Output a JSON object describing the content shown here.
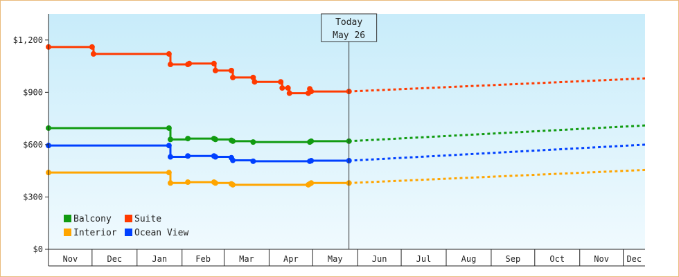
{
  "chart_data": {
    "type": "line",
    "title": "",
    "xlabel": "",
    "ylabel": "",
    "ylim": [
      0,
      1350
    ],
    "y_ticks": [
      {
        "value": 0,
        "label": "$0"
      },
      {
        "value": 300,
        "label": "$300"
      },
      {
        "value": 600,
        "label": "$600"
      },
      {
        "value": 900,
        "label": "$900"
      },
      {
        "value": 1200,
        "label": "$1,200"
      }
    ],
    "x_axis": {
      "start": "2023-11-01",
      "end": "2024-12-16",
      "months": [
        {
          "label": "Nov",
          "start": "2023-11-01"
        },
        {
          "label": "Dec",
          "start": "2023-12-01"
        },
        {
          "label": "Jan",
          "start": "2024-01-01"
        },
        {
          "label": "Feb",
          "start": "2024-02-01"
        },
        {
          "label": "Mar",
          "start": "2024-03-01"
        },
        {
          "label": "Apr",
          "start": "2024-04-01"
        },
        {
          "label": "May",
          "start": "2024-05-01"
        },
        {
          "label": "Jun",
          "start": "2024-06-01"
        },
        {
          "label": "Jul",
          "start": "2024-07-01"
        },
        {
          "label": "Aug",
          "start": "2024-08-01"
        },
        {
          "label": "Sep",
          "start": "2024-09-01"
        },
        {
          "label": "Oct",
          "start": "2024-10-01"
        },
        {
          "label": "Nov",
          "start": "2024-11-01"
        },
        {
          "label": "Dec",
          "start": "2024-12-01"
        }
      ]
    },
    "today": {
      "date": "2024-05-26",
      "line1": "Today",
      "line2": "May 26"
    },
    "grid": false,
    "legend": {
      "placement": "bottom-left",
      "columns": 2
    },
    "series": [
      {
        "name": "Suite",
        "color": "#ff3a00",
        "points": [
          {
            "date": "2023-11-01",
            "value": 1160
          },
          {
            "date": "2023-12-01",
            "value": 1160
          },
          {
            "date": "2023-12-02",
            "value": 1120
          },
          {
            "date": "2024-01-23",
            "value": 1120
          },
          {
            "date": "2024-01-24",
            "value": 1060
          },
          {
            "date": "2024-02-05",
            "value": 1060
          },
          {
            "date": "2024-02-06",
            "value": 1065
          },
          {
            "date": "2024-02-23",
            "value": 1065
          },
          {
            "date": "2024-02-24",
            "value": 1025
          },
          {
            "date": "2024-03-06",
            "value": 1025
          },
          {
            "date": "2024-03-07",
            "value": 985
          },
          {
            "date": "2024-03-21",
            "value": 985
          },
          {
            "date": "2024-03-22",
            "value": 960
          },
          {
            "date": "2024-04-09",
            "value": 960
          },
          {
            "date": "2024-04-10",
            "value": 925
          },
          {
            "date": "2024-04-14",
            "value": 925
          },
          {
            "date": "2024-04-15",
            "value": 895
          },
          {
            "date": "2024-04-28",
            "value": 895
          },
          {
            "date": "2024-04-29",
            "value": 920
          },
          {
            "date": "2024-04-30",
            "value": 905
          },
          {
            "date": "2024-05-26",
            "value": 905
          }
        ],
        "forecast": [
          {
            "date": "2024-05-26",
            "value": 905
          },
          {
            "date": "2024-12-16",
            "value": 980
          }
        ]
      },
      {
        "name": "Balcony",
        "color": "#119b11",
        "points": [
          {
            "date": "2023-11-01",
            "value": 695
          },
          {
            "date": "2024-01-23",
            "value": 695
          },
          {
            "date": "2024-01-24",
            "value": 630
          },
          {
            "date": "2024-02-05",
            "value": 635
          },
          {
            "date": "2024-02-23",
            "value": 635
          },
          {
            "date": "2024-02-24",
            "value": 630
          },
          {
            "date": "2024-03-06",
            "value": 625
          },
          {
            "date": "2024-03-07",
            "value": 620
          },
          {
            "date": "2024-03-21",
            "value": 615
          },
          {
            "date": "2024-04-29",
            "value": 615
          },
          {
            "date": "2024-04-30",
            "value": 620
          },
          {
            "date": "2024-05-26",
            "value": 620
          }
        ],
        "forecast": [
          {
            "date": "2024-05-26",
            "value": 620
          },
          {
            "date": "2024-12-16",
            "value": 710
          }
        ]
      },
      {
        "name": "Ocean View",
        "color": "#0040ff",
        "points": [
          {
            "date": "2023-11-01",
            "value": 595
          },
          {
            "date": "2024-01-23",
            "value": 595
          },
          {
            "date": "2024-01-24",
            "value": 530
          },
          {
            "date": "2024-02-05",
            "value": 535
          },
          {
            "date": "2024-02-23",
            "value": 535
          },
          {
            "date": "2024-02-24",
            "value": 530
          },
          {
            "date": "2024-03-06",
            "value": 525
          },
          {
            "date": "2024-03-07",
            "value": 510
          },
          {
            "date": "2024-03-21",
            "value": 505
          },
          {
            "date": "2024-04-29",
            "value": 505
          },
          {
            "date": "2024-04-30",
            "value": 508
          },
          {
            "date": "2024-05-26",
            "value": 508
          }
        ],
        "forecast": [
          {
            "date": "2024-05-26",
            "value": 508
          },
          {
            "date": "2024-12-16",
            "value": 600
          }
        ]
      },
      {
        "name": "Interior",
        "color": "#ffa500",
        "points": [
          {
            "date": "2023-11-01",
            "value": 440
          },
          {
            "date": "2024-01-23",
            "value": 440
          },
          {
            "date": "2024-01-24",
            "value": 380
          },
          {
            "date": "2024-02-05",
            "value": 385
          },
          {
            "date": "2024-02-23",
            "value": 385
          },
          {
            "date": "2024-02-24",
            "value": 380
          },
          {
            "date": "2024-03-06",
            "value": 375
          },
          {
            "date": "2024-03-07",
            "value": 370
          },
          {
            "date": "2024-04-28",
            "value": 370
          },
          {
            "date": "2024-04-29",
            "value": 375
          },
          {
            "date": "2024-04-30",
            "value": 380
          },
          {
            "date": "2024-05-26",
            "value": 380
          }
        ],
        "forecast": [
          {
            "date": "2024-05-26",
            "value": 380
          },
          {
            "date": "2024-12-16",
            "value": 455
          }
        ]
      }
    ],
    "legend_entries": [
      {
        "name": "Balcony",
        "color": "#119b11"
      },
      {
        "name": "Suite",
        "color": "#ff3a00"
      },
      {
        "name": "Interior",
        "color": "#ffa500"
      },
      {
        "name": "Ocean View",
        "color": "#0040ff"
      }
    ]
  }
}
